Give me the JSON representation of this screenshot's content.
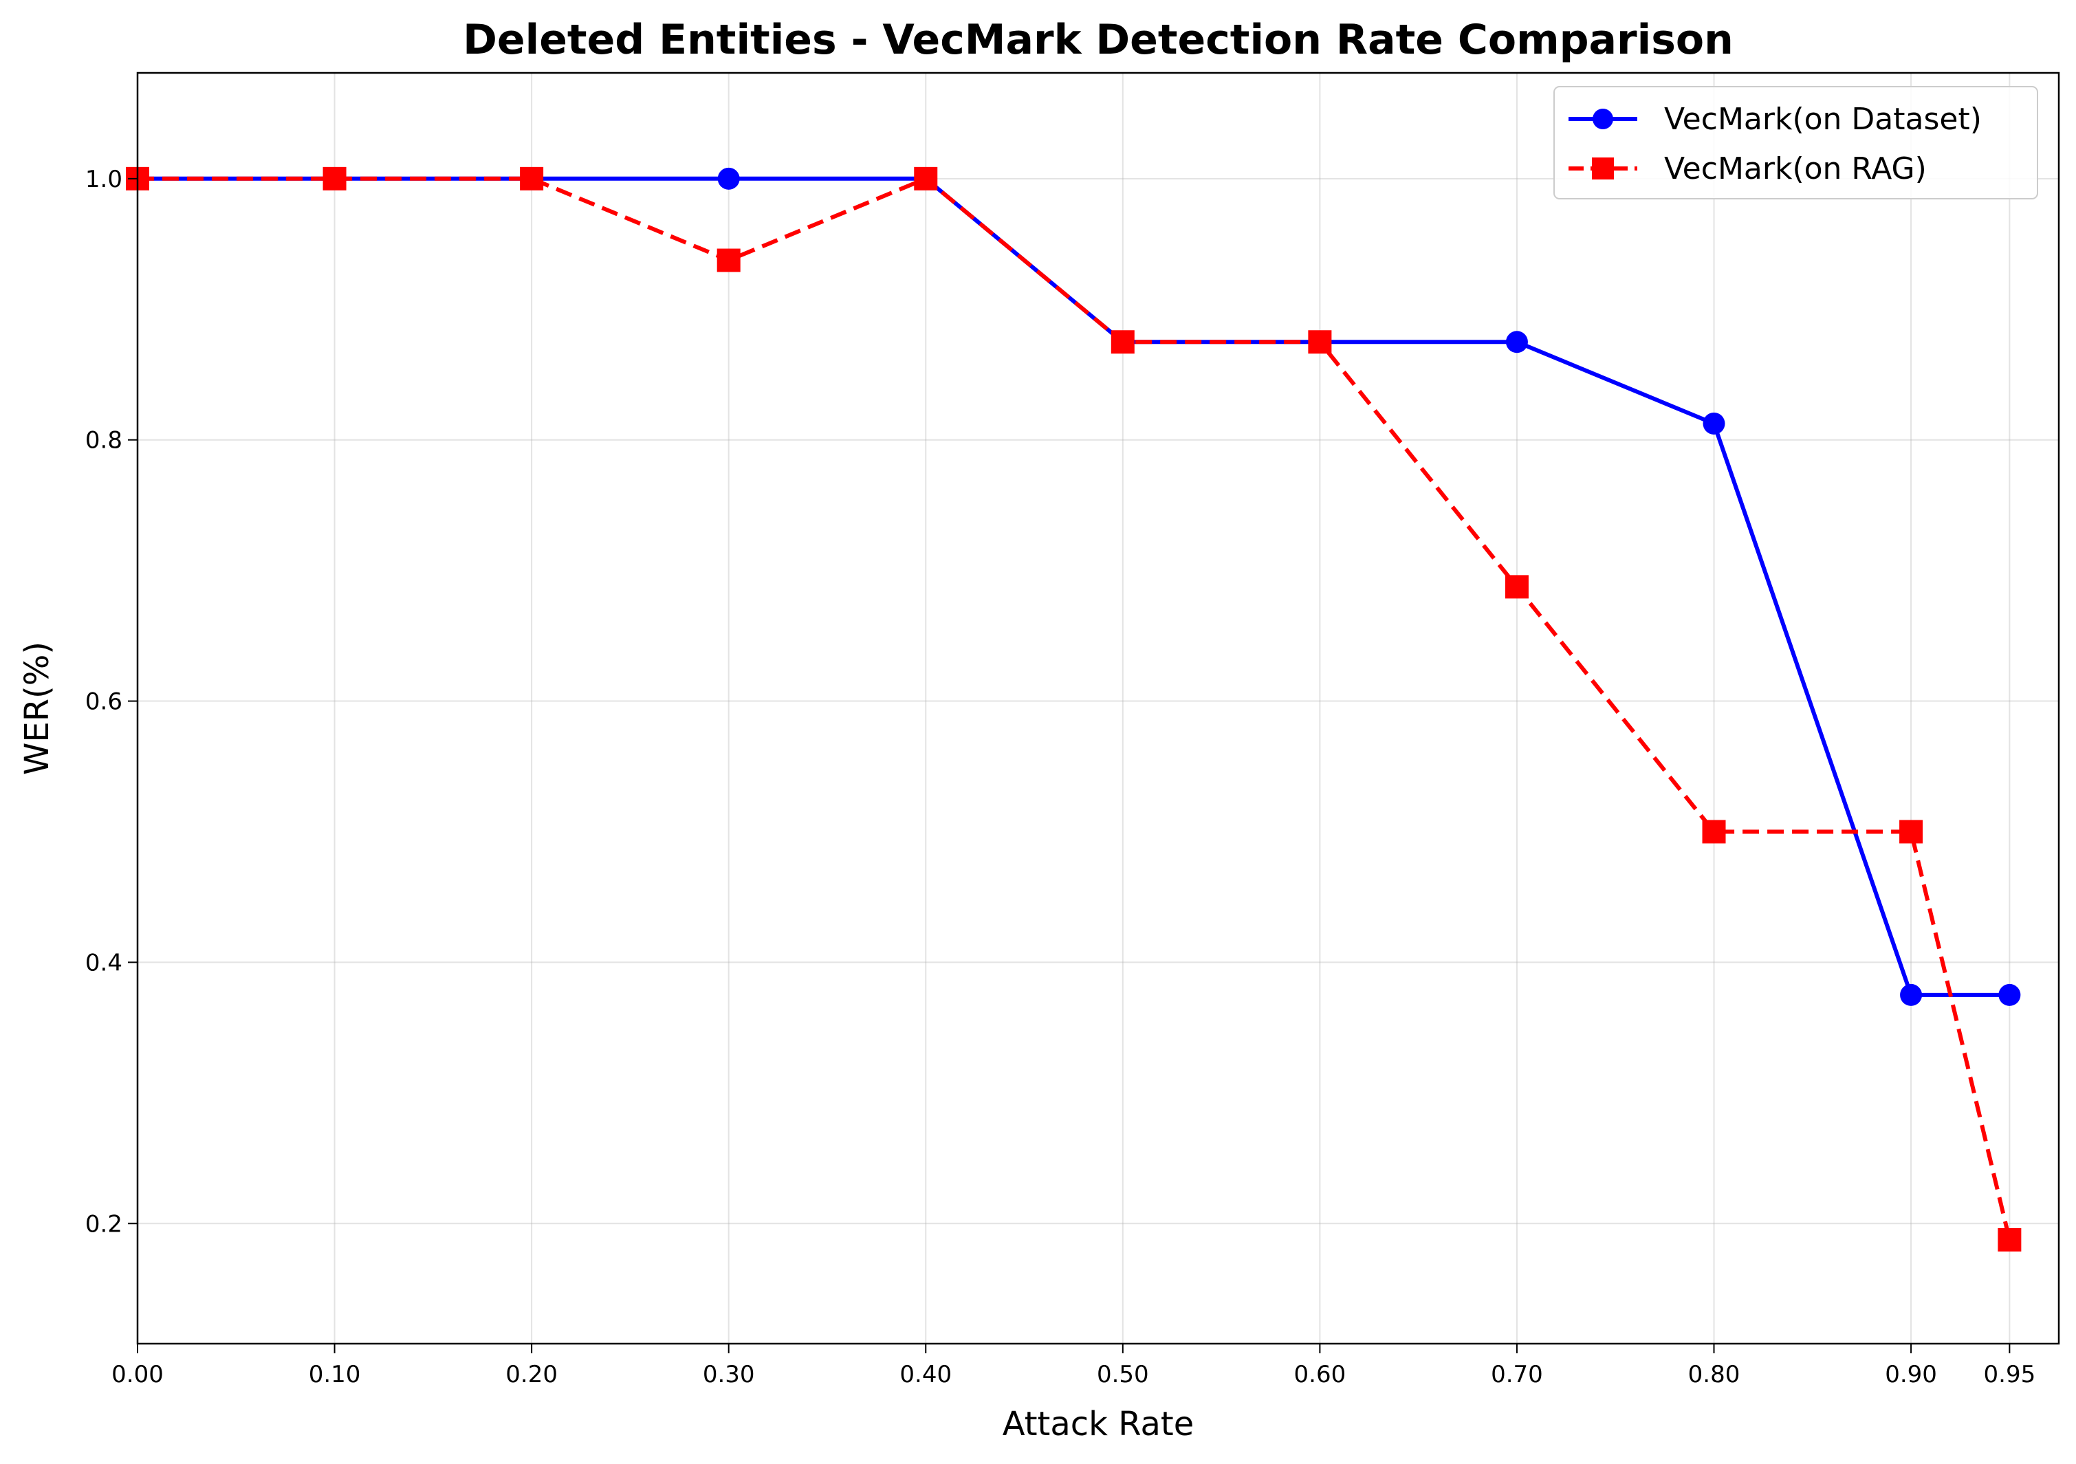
{
  "chart_data": {
    "type": "line",
    "title": "Deleted Entities - VecMark Detection Rate Comparison",
    "xlabel": "Attack Rate",
    "ylabel": "WER(%)",
    "xlim": [
      0.0,
      0.975
    ],
    "ylim": [
      0.108,
      1.081
    ],
    "x": [
      0.0,
      0.1,
      0.2,
      0.3,
      0.4,
      0.5,
      0.6,
      0.7,
      0.8,
      0.9,
      0.95
    ],
    "x_tick_labels": [
      "0.00",
      "0.10",
      "0.20",
      "0.30",
      "0.40",
      "0.50",
      "0.60",
      "0.70",
      "0.80",
      "0.90",
      "0.95"
    ],
    "y_ticks": [
      0.2,
      0.4,
      0.6,
      0.8,
      1.0
    ],
    "y_tick_labels": [
      "0.2",
      "0.4",
      "0.6",
      "0.8",
      "1.0"
    ],
    "grid": true,
    "legend_position": "top-right",
    "series": [
      {
        "name": "VecMark(on Dataset)",
        "color": "#0000ff",
        "line_style": "solid",
        "marker": "circle",
        "values": [
          1.0,
          1.0,
          1.0,
          1.0,
          1.0,
          0.875,
          0.875,
          0.875,
          0.8125,
          0.375,
          0.375
        ]
      },
      {
        "name": "VecMark(on RAG)",
        "color": "#ff0000",
        "line_style": "dashed",
        "marker": "square",
        "values": [
          1.0,
          1.0,
          1.0,
          0.9375,
          1.0,
          0.875,
          0.875,
          0.6875,
          0.5,
          0.5,
          0.1875
        ]
      }
    ]
  }
}
